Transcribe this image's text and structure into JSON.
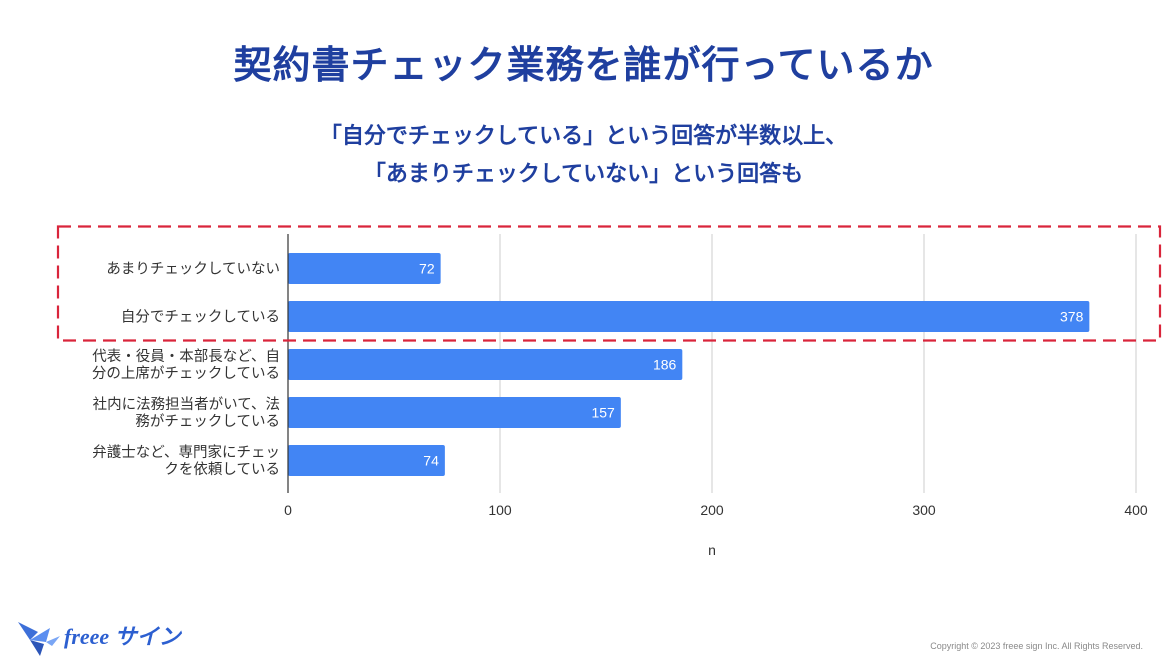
{
  "page": {
    "title": "契約書チェック業務を誰が行っているか",
    "subtitle_line1": "「自分でチェックしている」という回答が半数以上、",
    "subtitle_line2": "「あまりチェックしていない」という回答も"
  },
  "chart_data": {
    "type": "bar",
    "orientation": "horizontal",
    "categories": [
      [
        "あまりチェックしていない"
      ],
      [
        "自分でチェックしている"
      ],
      [
        "代表・役員・本部長など、自",
        "分の上席がチェックしている"
      ],
      [
        "社内に法務担当者がいて、法",
        "務がチェックしている"
      ],
      [
        "弁護士など、専門家にチェッ",
        "クを依頼している"
      ]
    ],
    "values": [
      72,
      378,
      186,
      157,
      74
    ],
    "xlim": [
      0,
      400
    ],
    "xticks": [
      0,
      100,
      200,
      300,
      400
    ],
    "xlabel": "n",
    "highlighted_categories": [
      0,
      1
    ],
    "bar_color": "#4285f4",
    "highlight_color": "#d9253b",
    "grid": true
  },
  "footer": {
    "logo_text": "freee サイン",
    "copyright": "Copyright © 2023 freee sign Inc. All Rights Reserved."
  }
}
